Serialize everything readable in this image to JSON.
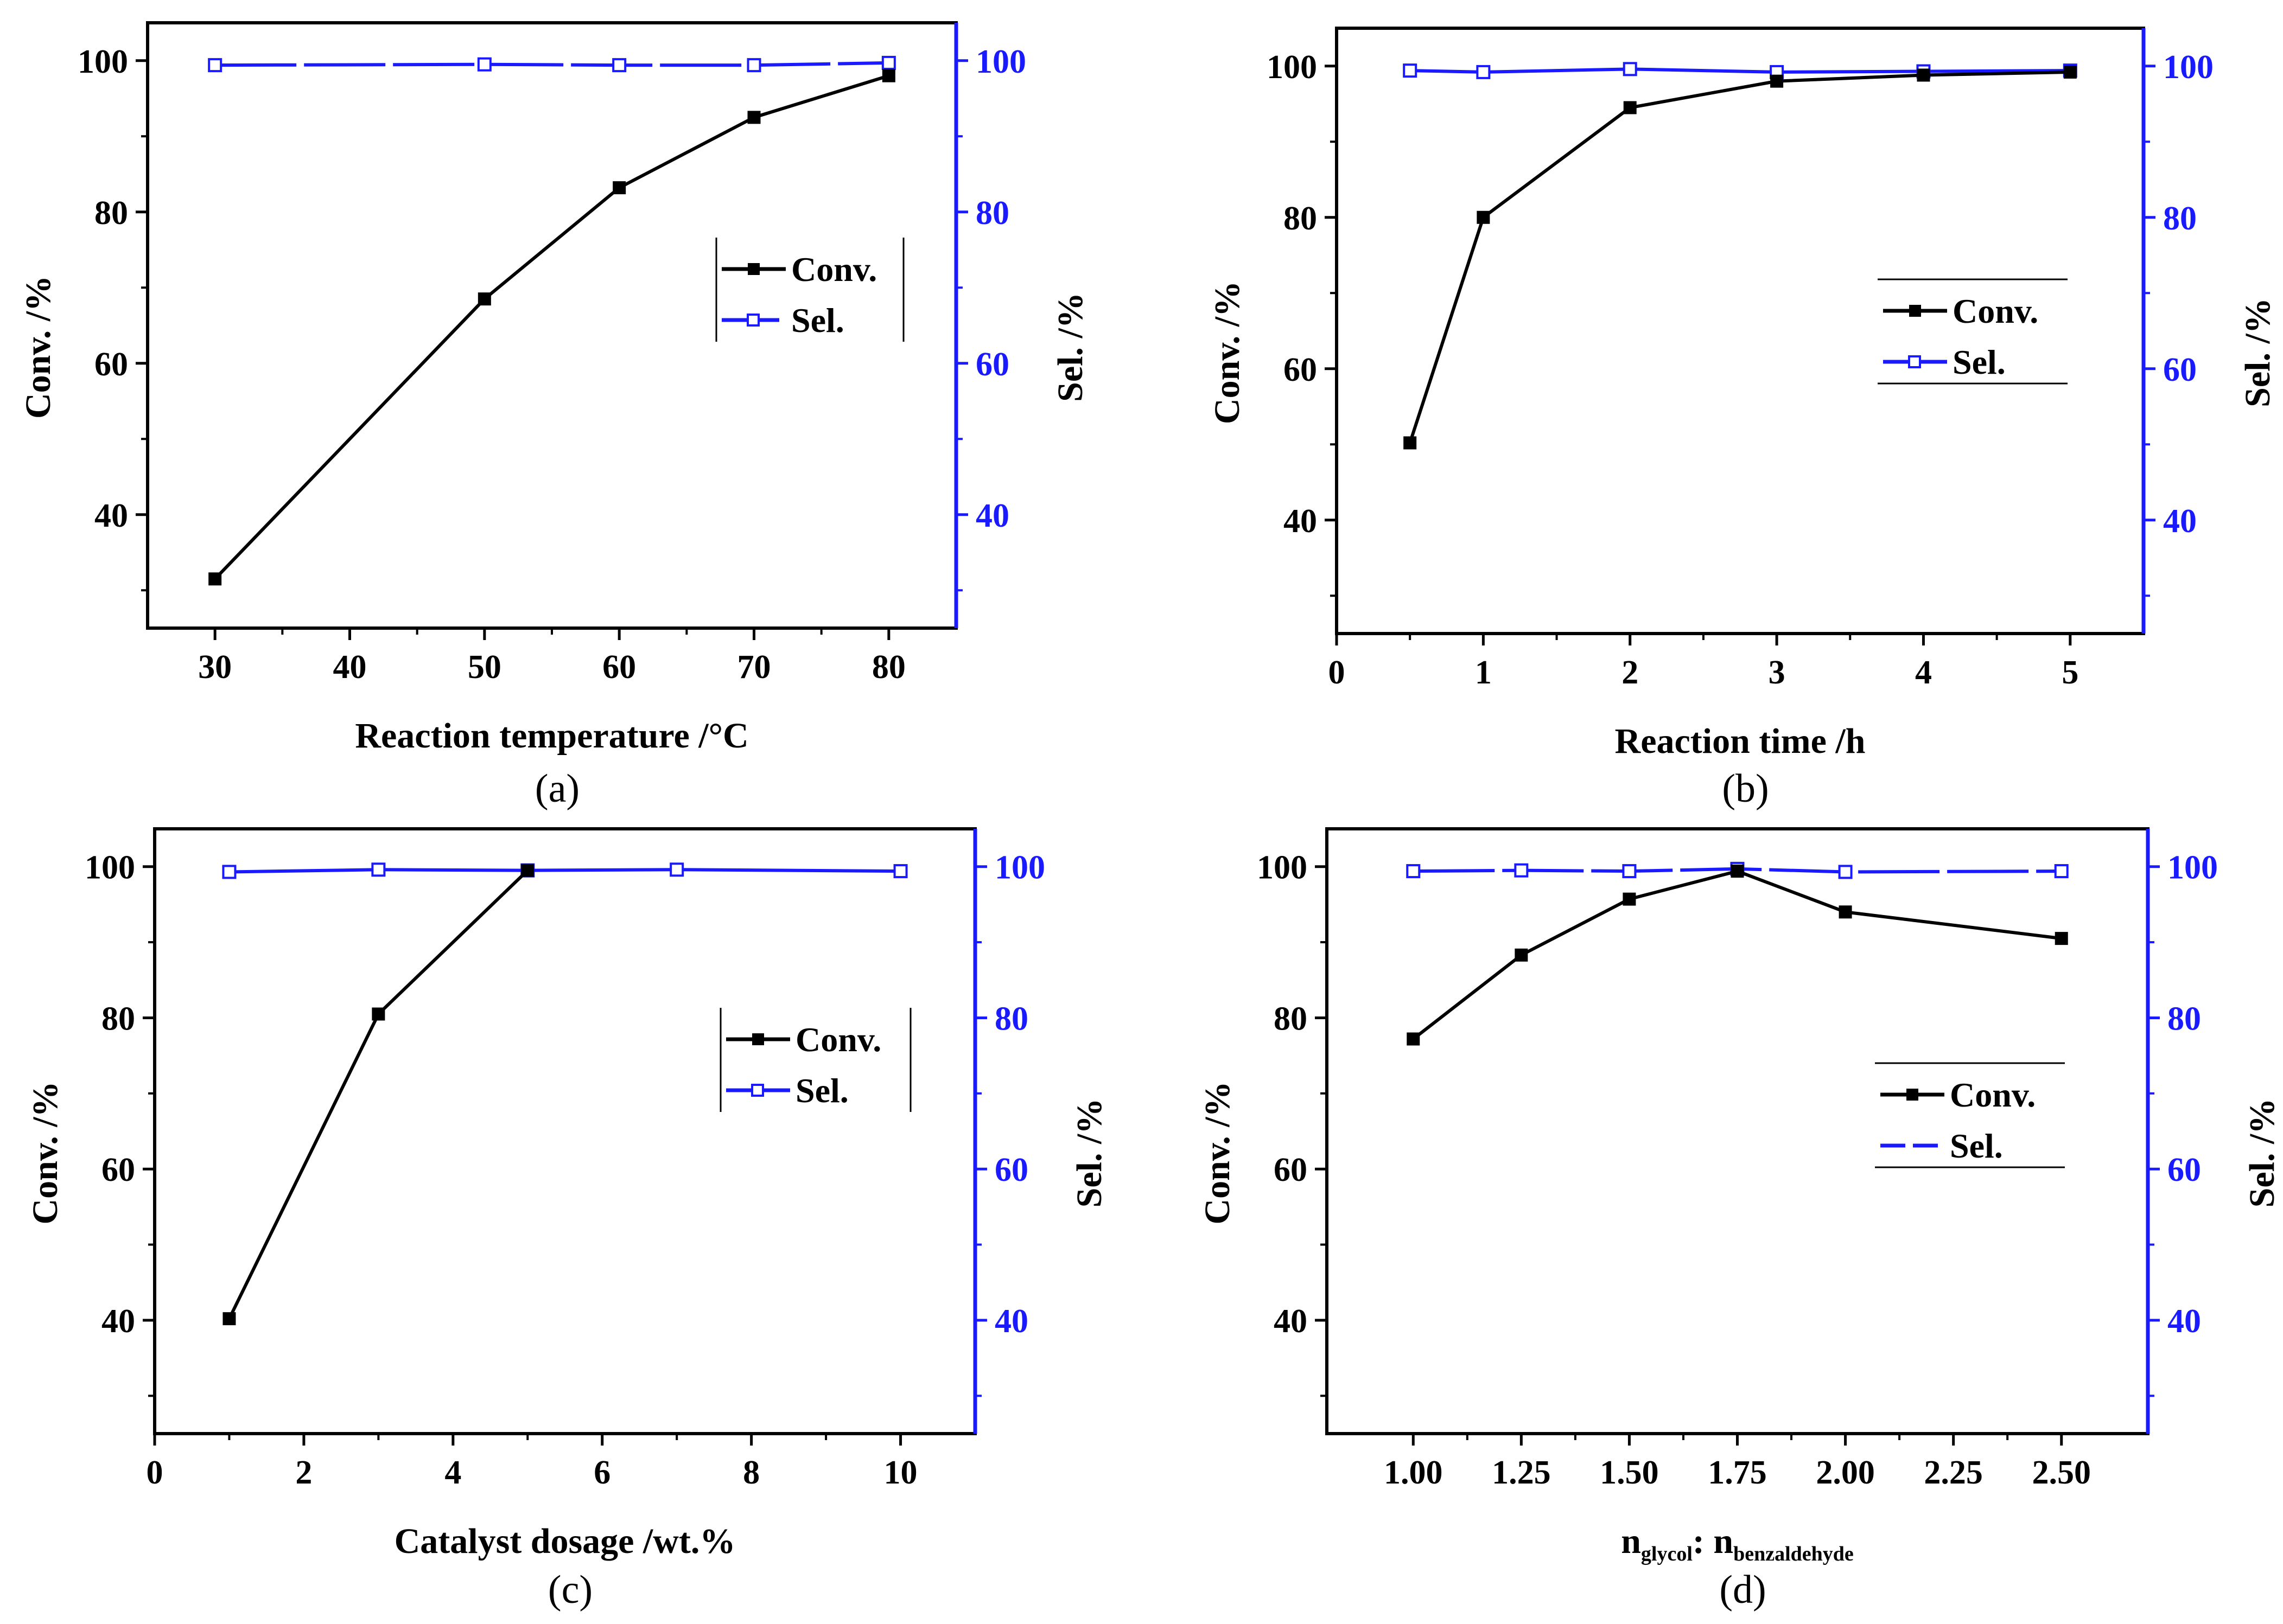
{
  "colors": {
    "conv": "#000000",
    "sel": "#1a1aff"
  },
  "chart_data": [
    {
      "type": "line",
      "caption": "(a)",
      "xlabel": "Reaction temperature /°C",
      "ylabel_left": "Conv. /%",
      "ylabel_right": "Sel. /%",
      "xlim": [
        25,
        85
      ],
      "xticks": [
        30,
        40,
        50,
        60,
        70,
        80
      ],
      "xtick_labels": [
        "30",
        "40",
        "50",
        "60",
        "70",
        "80"
      ],
      "ylim": [
        25,
        105
      ],
      "yticks": [
        40,
        60,
        80,
        100
      ],
      "ytick_labels": [
        "40",
        "60",
        "80",
        "100"
      ],
      "legend": [
        "Conv.",
        "Sel."
      ],
      "legend_position": "center-right",
      "sel_style": "dashed",
      "series": [
        {
          "name": "Conv.",
          "x": [
            30,
            50,
            60,
            70,
            80
          ],
          "values": [
            31.5,
            68.5,
            83.2,
            92.5,
            98.0
          ]
        },
        {
          "name": "Sel.",
          "x": [
            30,
            50,
            60,
            70,
            80
          ],
          "values": [
            99.4,
            99.5,
            99.4,
            99.4,
            99.7
          ]
        }
      ]
    },
    {
      "type": "line",
      "caption": "(b)",
      "xlabel": "Reaction time /h",
      "ylabel_left": "Conv. /%",
      "ylabel_right": "Sel. /%",
      "xlim": [
        0,
        5.5
      ],
      "xticks": [
        0,
        1,
        2,
        3,
        4,
        5
      ],
      "xtick_labels": [
        "0",
        "1",
        "2",
        "3",
        "4",
        "5"
      ],
      "ylim": [
        25,
        105
      ],
      "yticks": [
        40,
        60,
        80,
        100
      ],
      "ytick_labels": [
        "40",
        "60",
        "80",
        "100"
      ],
      "legend": [
        "Conv.",
        "Sel."
      ],
      "legend_position": "center-right",
      "sel_style": "solid",
      "series": [
        {
          "name": "Conv.",
          "x": [
            0.5,
            1,
            2,
            3,
            4,
            5
          ],
          "values": [
            50.2,
            80.0,
            94.5,
            98.0,
            98.8,
            99.2
          ]
        },
        {
          "name": "Sel.",
          "x": [
            0.5,
            1,
            2,
            3,
            4,
            5
          ],
          "values": [
            99.4,
            99.2,
            99.6,
            99.2,
            99.3,
            99.4
          ]
        }
      ]
    },
    {
      "type": "line",
      "caption": "(c)",
      "xlabel": "Catalyst dosage /wt.%",
      "ylabel_left": "Conv. /%",
      "ylabel_right": "Sel. /%",
      "xlim": [
        0,
        11
      ],
      "xticks": [
        0,
        2,
        4,
        6,
        8,
        10
      ],
      "xtick_labels": [
        "0",
        "2",
        "4",
        "6",
        "8",
        "10"
      ],
      "ylim": [
        25,
        105
      ],
      "yticks": [
        40,
        60,
        80,
        100
      ],
      "ytick_labels": [
        "40",
        "60",
        "80",
        "100"
      ],
      "legend": [
        "Conv.",
        "Sel."
      ],
      "legend_position": "center-right",
      "sel_style": "solid",
      "series": [
        {
          "name": "Conv.",
          "x": [
            1,
            3,
            5
          ],
          "values": [
            40.2,
            80.5,
            99.5
          ]
        },
        {
          "name": "Sel.",
          "x": [
            1,
            3,
            5,
            7,
            10
          ],
          "values": [
            99.3,
            99.6,
            99.5,
            99.6,
            99.4
          ]
        }
      ]
    },
    {
      "type": "line",
      "caption": "(d)",
      "xlabel": "n_glycol : n_benzaldehyde",
      "xlabel_parts": {
        "n1": "n",
        "sub1": "glycol",
        "sep": ": n",
        "sub2": "benzaldehyde"
      },
      "ylabel_left": "Conv. /%",
      "ylabel_right": "Sel. /%",
      "xlim": [
        0.8,
        2.7
      ],
      "xticks": [
        1.0,
        1.25,
        1.5,
        1.75,
        2.0,
        2.25,
        2.5
      ],
      "xtick_labels": [
        "1.00",
        "1.25",
        "1.50",
        "1.75",
        "2.00",
        "2.25",
        "2.50"
      ],
      "ylim": [
        25,
        105
      ],
      "yticks": [
        40,
        60,
        80,
        100
      ],
      "ytick_labels": [
        "40",
        "60",
        "80",
        "100"
      ],
      "legend": [
        "Conv.",
        "Sel."
      ],
      "legend_position": "center-right",
      "sel_style": "dashed",
      "series": [
        {
          "name": "Conv.",
          "x": [
            1.0,
            1.25,
            1.5,
            1.75,
            2.0,
            2.5
          ],
          "values": [
            77.2,
            88.3,
            95.7,
            99.4,
            94.0,
            90.5
          ]
        },
        {
          "name": "Sel.",
          "x": [
            1.0,
            1.25,
            1.5,
            1.75,
            2.0,
            2.5
          ],
          "values": [
            99.4,
            99.5,
            99.4,
            99.7,
            99.3,
            99.4
          ]
        }
      ]
    }
  ]
}
